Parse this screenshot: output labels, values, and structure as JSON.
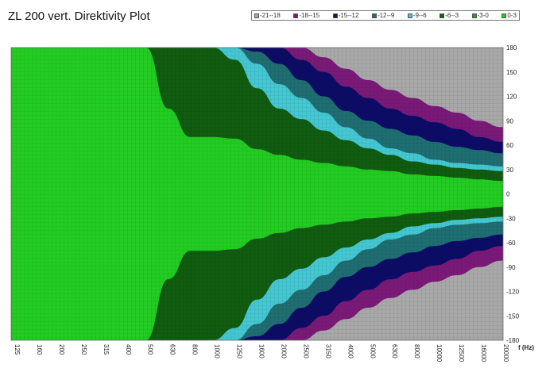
{
  "title": "ZL 200 vert. Direktivity Plot",
  "legend": [
    {
      "label": "-21--18",
      "color": "#a8a8a8"
    },
    {
      "label": "-18--15",
      "color": "#7a1a78"
    },
    {
      "label": "-15--12",
      "color": "#0c0c66"
    },
    {
      "label": "-12--9",
      "color": "#1f6e72"
    },
    {
      "label": "-9--6",
      "color": "#44c7d2"
    },
    {
      "label": "-6--3",
      "color": "#105c10"
    },
    {
      "label": "-3-0",
      "color": "#2e9b2e"
    },
    {
      "label": "0-3",
      "color": "#22cc22"
    }
  ],
  "chart_data": {
    "type": "heatmap",
    "title": "ZL 200 vert. Direktivity Plot",
    "x_unit_label": "f (Hz)",
    "x_ticks": [
      "125",
      "160",
      "200",
      "250",
      "315",
      "400",
      "500",
      "630",
      "800",
      "1000",
      "1250",
      "1600",
      "2000",
      "2500",
      "3150",
      "4000",
      "5000",
      "6300",
      "8000",
      "10000",
      "12500",
      "16000",
      "20000"
    ],
    "y_ticks": [
      "180",
      "150",
      "120",
      "90",
      "60",
      "30",
      "0",
      "-30",
      "-60",
      "-90",
      "-120",
      "-150",
      "-180"
    ],
    "ylim": [
      -180,
      180
    ],
    "grid": true,
    "level_boundaries_deg": [
      {
        "level": "-3-0",
        "color": "#105c10",
        "angle": [
          180,
          180,
          180,
          180,
          180,
          180,
          180,
          105,
          70,
          70,
          68,
          55,
          48,
          42,
          38,
          34,
          30,
          28,
          24,
          22,
          20,
          18,
          16
        ]
      },
      {
        "level": "-6--3",
        "color": "#44c7d2",
        "angle": [
          180,
          180,
          180,
          180,
          180,
          180,
          180,
          180,
          180,
          180,
          165,
          130,
          105,
          92,
          78,
          66,
          56,
          48,
          40,
          36,
          32,
          30,
          28
        ]
      },
      {
        "level": "-9--6",
        "color": "#1f6e72",
        "angle": [
          180,
          180,
          180,
          180,
          180,
          180,
          180,
          180,
          180,
          180,
          180,
          160,
          135,
          118,
          100,
          82,
          68,
          56,
          50,
          42,
          38,
          36,
          34
        ]
      },
      {
        "level": "-12--9",
        "color": "#0c0c66",
        "angle": [
          180,
          180,
          180,
          180,
          180,
          180,
          180,
          180,
          180,
          180,
          180,
          175,
          160,
          140,
          120,
          102,
          90,
          80,
          72,
          64,
          58,
          54,
          50
        ]
      },
      {
        "level": "-15--12",
        "color": "#7a1a78",
        "angle": [
          180,
          180,
          180,
          180,
          180,
          180,
          180,
          180,
          180,
          180,
          180,
          180,
          180,
          165,
          150,
          132,
          118,
          105,
          96,
          88,
          80,
          70,
          64
        ]
      },
      {
        "level": "-18--15",
        "color": "#a8a8a8",
        "angle": [
          180,
          180,
          180,
          180,
          180,
          180,
          180,
          180,
          180,
          180,
          180,
          180,
          180,
          180,
          168,
          154,
          140,
          128,
          118,
          108,
          100,
          90,
          82
        ]
      }
    ]
  }
}
